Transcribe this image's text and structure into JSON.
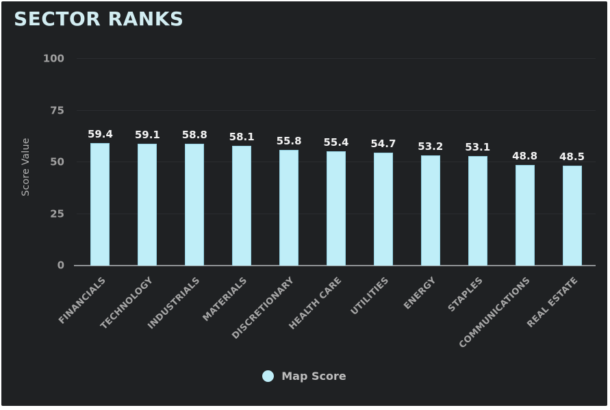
{
  "title": "SECTOR RANKS",
  "y_axis": {
    "label": "Score Value"
  },
  "legend": {
    "label": "Map Score"
  },
  "colors": {
    "background": "#1f2123",
    "frame": "#ffffff",
    "bar": "#bfeef8",
    "title_text": "#d2edf2",
    "axis_line": "#8f9295",
    "gridline": "#2b2d30",
    "tick_text": "#a0a0a0",
    "value_text": "#f3f3f3",
    "category_text": "#a6a6a6",
    "legend_text": "#bdbdbd"
  },
  "chart_data": {
    "type": "bar",
    "title": "SECTOR RANKS",
    "categories": [
      "FINANCIALS",
      "TECHNOLOGY",
      "INDUSTRIALS",
      "MATERIALS",
      "DISCRETIONARY",
      "HEALTH CARE",
      "UTILITIES",
      "ENERGY",
      "STAPLES",
      "COMMUNICATIONS",
      "REAL ESTATE"
    ],
    "values": [
      59.4,
      59.1,
      58.8,
      58.1,
      55.8,
      55.4,
      54.7,
      53.2,
      53.1,
      48.8,
      48.5
    ],
    "series_name": "Map Score",
    "xlabel": "",
    "ylabel": "Score Value",
    "ylim": [
      0,
      100
    ],
    "yticks": [
      0,
      25,
      50,
      75,
      100
    ],
    "grid": true,
    "bar_color": "#bfeef8",
    "value_labels": true,
    "category_label_rotation": -45,
    "legend_position": "bottom"
  }
}
